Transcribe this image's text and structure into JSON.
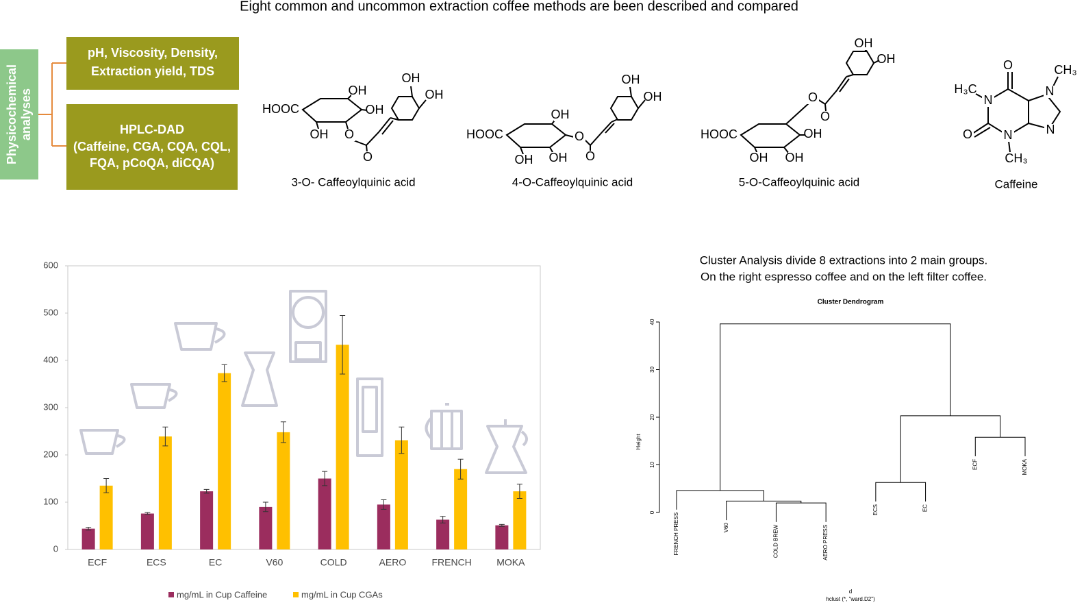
{
  "title": "Eight common and uncommon extraction coffee methods are been described and compared",
  "analyses": {
    "label": [
      "Physicochemical",
      "analyses"
    ],
    "boxes": [
      [
        "pH, Viscosity, Density,",
        "Extraction yield, TDS"
      ],
      [
        "HPLC-DAD",
        "(Caffeine, CGA, CQA, CQL,",
        "FQA, pCoQA, diCQA)"
      ]
    ]
  },
  "molecules": [
    {
      "name": "3-O- Caffeoylquinic acid",
      "atoms": [
        "HOOC",
        "OH",
        "OH",
        "OH",
        "O",
        "O",
        "OH",
        "OH"
      ]
    },
    {
      "name": "4-O-Caffeoylquinic acid",
      "atoms": [
        "HOOC",
        "OH",
        "OH",
        "OH",
        "O",
        "O",
        "OH",
        "OH"
      ]
    },
    {
      "name": "5-O-Caffeoylquinic acid",
      "atoms": [
        "HOOC",
        "OH",
        "OH",
        "OH",
        "O",
        "O",
        "OH",
        "OH"
      ]
    },
    {
      "name": "Caffeine",
      "atoms": [
        "H₃C",
        "N",
        "O",
        "CH₃",
        "N",
        "N",
        "N",
        "CH₃",
        "O"
      ]
    }
  ],
  "cluster_note": [
    "Cluster Analysis divide 8 extractions into 2 main groups.",
    "On the right espresso coffee and on the left filter coffee."
  ],
  "chart_data": [
    {
      "type": "bar",
      "categories": [
        "ECF",
        "ECS",
        "EC",
        "V60",
        "COLD",
        "AERO",
        "FRENCH",
        "MOKA"
      ],
      "series": [
        {
          "name": "mg/mL in Cup Caffeine",
          "color": "#9b2d5e",
          "values": [
            44,
            76,
            123,
            90,
            150,
            95,
            63,
            51
          ],
          "errors": [
            3,
            2,
            4,
            10,
            15,
            10,
            7,
            2
          ]
        },
        {
          "name": "mg/mL in Cup CGAs",
          "color": "#ffc000",
          "values": [
            135,
            239,
            373,
            248,
            433,
            231,
            170,
            123
          ],
          "errors": [
            15,
            20,
            18,
            22,
            62,
            28,
            21,
            15
          ]
        }
      ],
      "ylim": [
        0,
        600
      ],
      "yticks": [
        0,
        100,
        200,
        300,
        400,
        500,
        600
      ]
    },
    {
      "type": "dendrogram",
      "title": "Cluster Dendrogram",
      "ylabel": "Height",
      "xlabel": "d",
      "sublabel": "hclust (*, \"ward.D2\")",
      "labels": [
        "FRENCH PRESS",
        "V60",
        "COLD BREW",
        "AERO PRESS",
        "ECS",
        "EC",
        "ECF",
        "MOKA"
      ],
      "merge": [
        [
          -3,
          -4
        ],
        [
          -2,
          1
        ],
        [
          -1,
          2
        ],
        [
          -5,
          -6
        ],
        [
          -7,
          -8
        ],
        [
          4,
          5
        ],
        [
          3,
          6
        ]
      ],
      "height": [
        2.0,
        2.4,
        4.6,
        6.3,
        15.8,
        20.3,
        39.6
      ],
      "ylim": [
        0,
        40
      ],
      "yticks": [
        0,
        10,
        20,
        30,
        40
      ]
    }
  ]
}
